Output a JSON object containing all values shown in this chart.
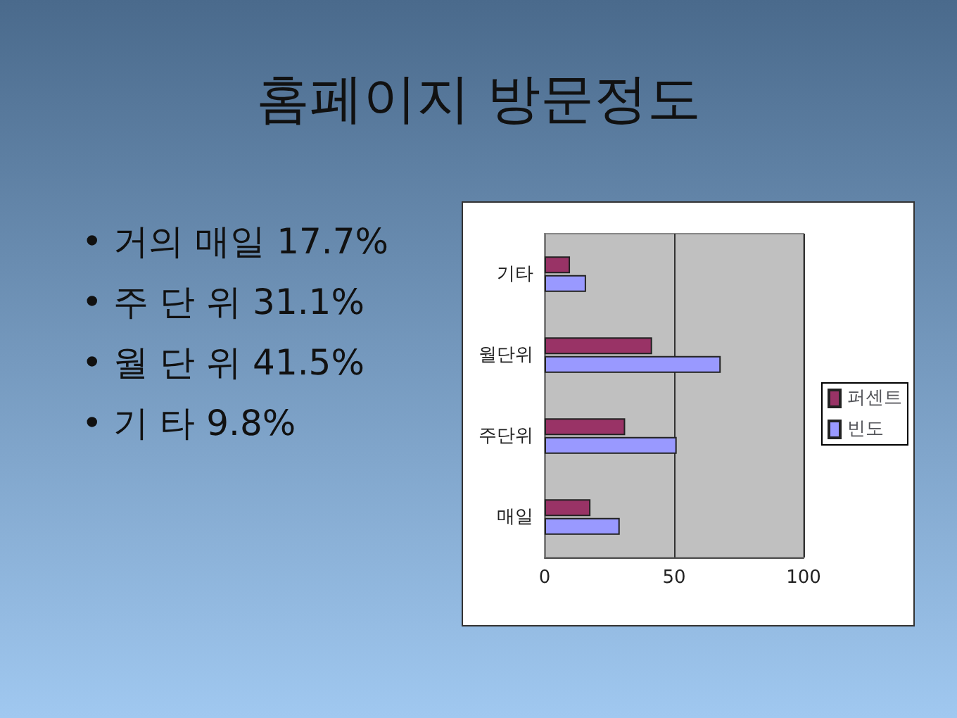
{
  "chart_data": {
    "type": "bar",
    "orientation": "horizontal",
    "title": "홈페이지 방문정도",
    "annotations": [
      "• 거의 매일 17.7%",
      "• 주 단 위 31.1%",
      "• 월 단 위 41.5%",
      "• 기 타 9.8%"
    ],
    "categories": [
      "기타",
      "월단위",
      "주단위",
      "매일"
    ],
    "series": [
      {
        "name": "퍼센트",
        "color": "#993366",
        "values": [
          9.8,
          41.5,
          31.1,
          17.7
        ]
      },
      {
        "name": "빈도",
        "color": "#9999ff",
        "values": [
          16,
          68,
          51,
          29
        ]
      }
    ],
    "xlim": [
      0,
      100
    ],
    "xticks": [
      0,
      50,
      100
    ],
    "grid": "x",
    "legend": "right"
  }
}
